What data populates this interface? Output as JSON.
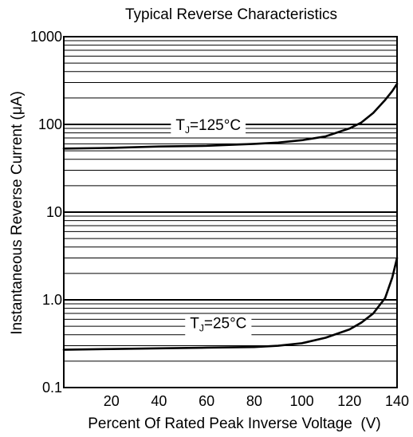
{
  "chart_data": {
    "type": "line",
    "title": "Typical Reverse Characteristics",
    "xlabel": "Percent Of Rated Peak Inverse Voltage  (V)",
    "ylabel": "Instantaneous Reverse Current (μA)",
    "xlim": [
      0,
      140
    ],
    "ylim": [
      0.1,
      1000
    ],
    "yscale": "log",
    "grid": true,
    "x_ticks": [
      20,
      40,
      60,
      80,
      100,
      120,
      140
    ],
    "x_tick_labels": [
      "20",
      "40",
      "60",
      "80",
      "100",
      "120",
      "140"
    ],
    "y_ticks": [
      0.1,
      1,
      10,
      100,
      1000
    ],
    "y_tick_labels": [
      "0.1",
      "1.0",
      "10",
      "100",
      "1000"
    ],
    "series": [
      {
        "name": "TJ=125°C",
        "label_main": "T",
        "label_sub": "J",
        "label_rest": "=125°C",
        "label_x": 47,
        "label_y": 100,
        "color": "#000000",
        "x": [
          0,
          20,
          40,
          60,
          80,
          90,
          100,
          110,
          120,
          125,
          130,
          135,
          138,
          140
        ],
        "y": [
          53,
          54,
          56,
          57,
          60,
          62,
          66,
          73,
          90,
          105,
          135,
          190,
          240,
          290
        ]
      },
      {
        "name": "TJ=25°C",
        "label_main": "T",
        "label_sub": "J",
        "label_rest": "=25°C",
        "label_x": 53,
        "label_y": 0.55,
        "color": "#000000",
        "x": [
          0,
          20,
          40,
          60,
          80,
          90,
          100,
          110,
          120,
          125,
          130,
          135,
          138,
          140
        ],
        "y": [
          0.27,
          0.275,
          0.28,
          0.285,
          0.29,
          0.3,
          0.32,
          0.37,
          0.46,
          0.55,
          0.7,
          1.05,
          1.8,
          3.0
        ]
      }
    ]
  }
}
